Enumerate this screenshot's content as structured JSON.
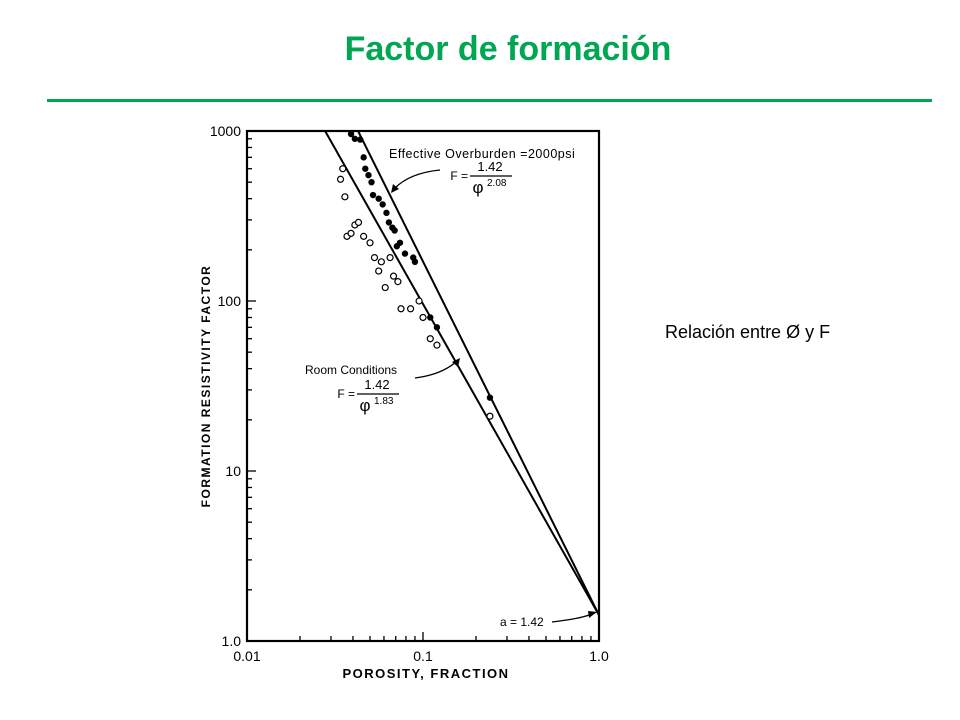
{
  "slide": {
    "title": "Factor de formación",
    "side_caption": "Relación entre Ø y F",
    "accent_color": "#00a651"
  },
  "chart_data": {
    "type": "scatter",
    "x_scale": "log",
    "y_scale": "log",
    "xlim": [
      0.01,
      1.0
    ],
    "ylim": [
      1.0,
      1000
    ],
    "xlabel": "POROSITY,  FRACTION",
    "ylabel": "FORMATION  RESISTIVITY  FACTOR",
    "x_ticks": [
      {
        "value": 0.01,
        "label": "0.01"
      },
      {
        "value": 0.1,
        "label": "0.1"
      },
      {
        "value": 1.0,
        "label": "1.0"
      }
    ],
    "y_ticks": [
      {
        "value": 1,
        "label": "1.0"
      },
      {
        "value": 10,
        "label": "10"
      },
      {
        "value": 100,
        "label": "100"
      },
      {
        "value": 1000,
        "label": "1000"
      }
    ],
    "series": [
      {
        "name": "Effective Overburden =2000psi",
        "marker": "filled",
        "fit": {
          "a": 1.42,
          "m": 2.08
        },
        "points": [
          [
            0.039,
            960
          ],
          [
            0.041,
            900
          ],
          [
            0.044,
            890
          ],
          [
            0.046,
            700
          ],
          [
            0.047,
            600
          ],
          [
            0.049,
            550
          ],
          [
            0.051,
            500
          ],
          [
            0.052,
            420
          ],
          [
            0.056,
            400
          ],
          [
            0.059,
            370
          ],
          [
            0.062,
            330
          ],
          [
            0.064,
            290
          ],
          [
            0.067,
            270
          ],
          [
            0.069,
            260
          ],
          [
            0.071,
            210
          ],
          [
            0.074,
            220
          ],
          [
            0.079,
            190
          ],
          [
            0.088,
            180
          ],
          [
            0.09,
            170
          ],
          [
            0.11,
            80
          ],
          [
            0.12,
            70
          ],
          [
            0.24,
            27
          ]
        ]
      },
      {
        "name": "Room Conditions",
        "marker": "open",
        "fit": {
          "a": 1.42,
          "m": 1.83
        },
        "points": [
          [
            0.034,
            520
          ],
          [
            0.035,
            600
          ],
          [
            0.036,
            410
          ],
          [
            0.037,
            240
          ],
          [
            0.039,
            250
          ],
          [
            0.041,
            280
          ],
          [
            0.043,
            290
          ],
          [
            0.046,
            240
          ],
          [
            0.05,
            220
          ],
          [
            0.053,
            180
          ],
          [
            0.056,
            150
          ],
          [
            0.058,
            170
          ],
          [
            0.061,
            120
          ],
          [
            0.065,
            180
          ],
          [
            0.068,
            140
          ],
          [
            0.072,
            130
          ],
          [
            0.075,
            90
          ],
          [
            0.085,
            90
          ],
          [
            0.095,
            100
          ],
          [
            0.1,
            80
          ],
          [
            0.11,
            60
          ],
          [
            0.12,
            55
          ],
          [
            0.24,
            21
          ]
        ]
      }
    ],
    "annotations": [
      {
        "id": "overburden",
        "label": "Effective Overburden =2000psi",
        "equation": {
          "lhs": "F =",
          "num": "1.42",
          "den": "2.08"
        }
      },
      {
        "id": "room",
        "label": "Room Conditions",
        "equation": {
          "lhs": "F =",
          "num": "1.42",
          "den": "1.83"
        }
      },
      {
        "id": "intercept",
        "label": "a = 1.42"
      }
    ],
    "phi_symbol": "φ",
    "grid": false,
    "legend": "none"
  }
}
